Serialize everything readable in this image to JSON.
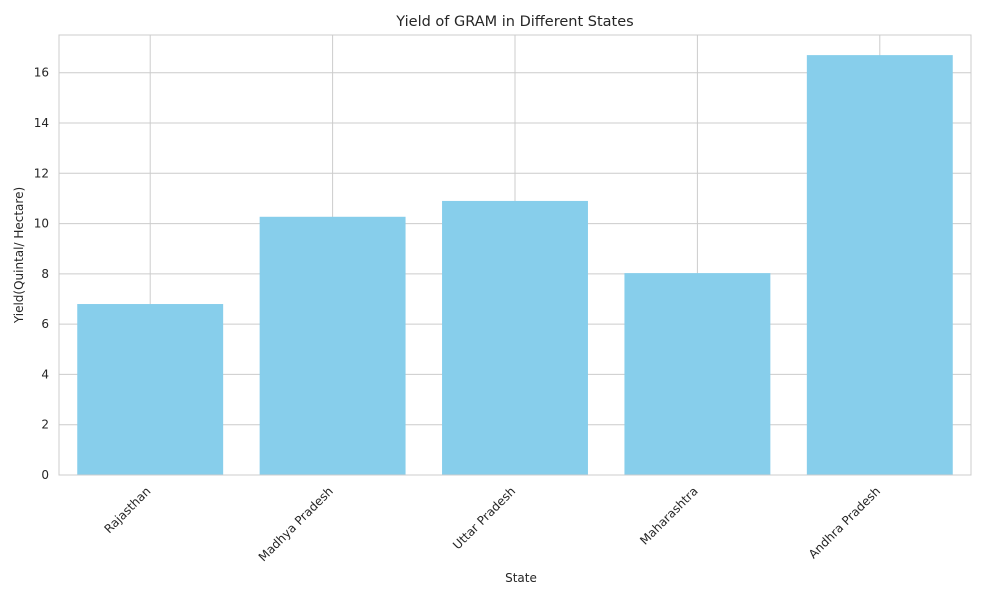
{
  "chart_data": {
    "type": "bar",
    "title": "Yield of GRAM in Different States",
    "xlabel": "State",
    "ylabel": "Yield(Quintal/ Hectare)",
    "categories": [
      "Rajasthan",
      "Madhya Pradesh",
      "Uttar Pradesh",
      "Maharashtra",
      "Andhra Pradesh"
    ],
    "values": [
      6.8,
      10.27,
      10.9,
      8.03,
      16.7
    ],
    "ylim": [
      0,
      17.5
    ],
    "yticks": [
      0,
      2,
      4,
      6,
      8,
      10,
      12,
      14,
      16
    ],
    "grid": true,
    "legend": "none",
    "colors": {
      "bar": "#87ceeb",
      "grid": "#cccccc",
      "axes_edge": "#cccccc",
      "text": "#262626"
    }
  }
}
